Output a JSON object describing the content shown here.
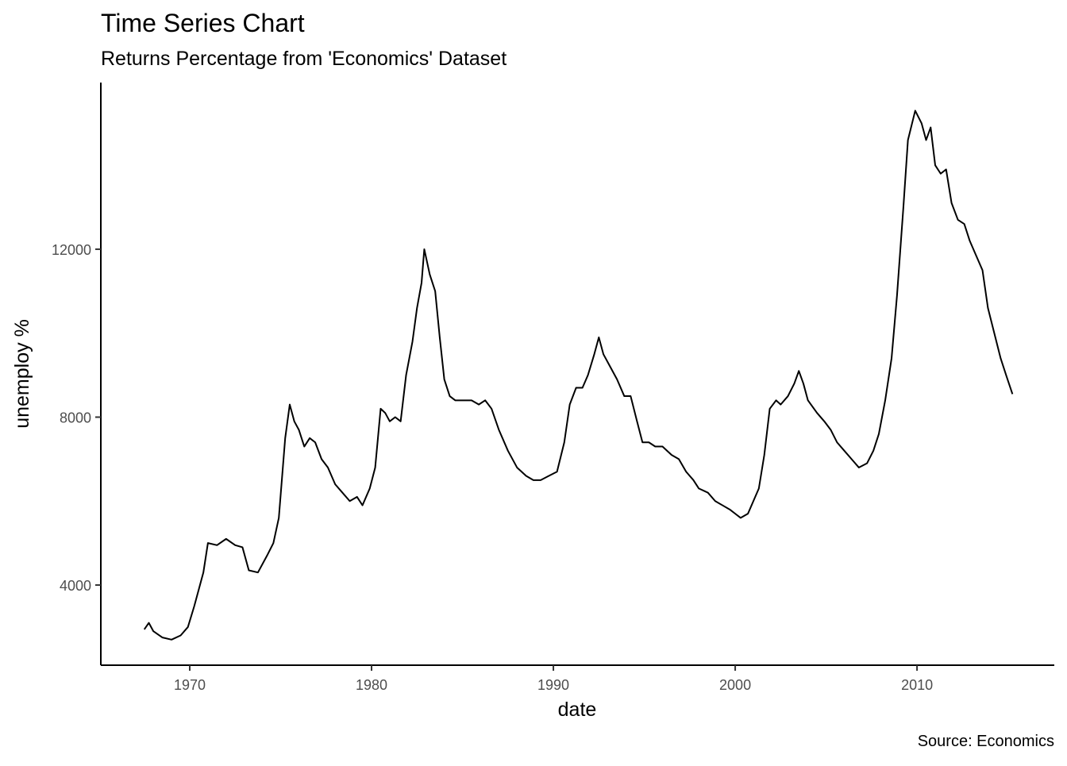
{
  "chart_data": {
    "type": "line",
    "title": "Time Series Chart",
    "subtitle": "Returns Percentage from 'Economics' Dataset",
    "x_label": "date",
    "y_label": "unemploy %",
    "caption": "Source: Economics",
    "color": "#000000",
    "grid": false,
    "x": [
      1967.5,
      1967.75,
      1968.0,
      1968.5,
      1969.0,
      1969.5,
      1969.9,
      1970.25,
      1970.5,
      1970.75,
      1971.0,
      1971.5,
      1972.0,
      1972.5,
      1972.9,
      1973.25,
      1973.75,
      1974.25,
      1974.6,
      1974.9,
      1975.25,
      1975.5,
      1975.75,
      1976.0,
      1976.3,
      1976.6,
      1976.9,
      1977.25,
      1977.6,
      1978.0,
      1978.4,
      1978.8,
      1979.2,
      1979.5,
      1979.9,
      1980.2,
      1980.5,
      1980.75,
      1981.0,
      1981.3,
      1981.6,
      1981.9,
      1982.25,
      1982.5,
      1982.75,
      1982.9,
      1983.2,
      1983.5,
      1983.75,
      1984.0,
      1984.3,
      1984.6,
      1985.0,
      1985.5,
      1985.9,
      1986.25,
      1986.6,
      1987.0,
      1987.5,
      1988.0,
      1988.5,
      1988.9,
      1989.3,
      1989.75,
      1990.2,
      1990.6,
      1990.9,
      1991.25,
      1991.6,
      1991.9,
      1992.25,
      1992.5,
      1992.75,
      1993.0,
      1993.5,
      1993.9,
      1994.25,
      1994.6,
      1994.9,
      1995.25,
      1995.6,
      1996.0,
      1996.5,
      1996.9,
      1997.3,
      1997.7,
      1998.0,
      1998.5,
      1998.9,
      1999.3,
      1999.7,
      2000.0,
      2000.3,
      2000.7,
      2001.0,
      2001.3,
      2001.6,
      2001.9,
      2002.25,
      2002.5,
      2002.9,
      2003.25,
      2003.5,
      2003.75,
      2004.0,
      2004.5,
      2004.9,
      2005.25,
      2005.6,
      2006.0,
      2006.4,
      2006.8,
      2007.25,
      2007.6,
      2007.9,
      2008.25,
      2008.6,
      2008.9,
      2009.25,
      2009.5,
      2009.9,
      2010.25,
      2010.5,
      2010.75,
      2011.0,
      2011.3,
      2011.6,
      2011.9,
      2012.25,
      2012.6,
      2012.9,
      2013.2,
      2013.6,
      2013.9,
      2014.25,
      2014.6,
      2014.9,
      2015.25
    ],
    "values": [
      2944,
      3100,
      2900,
      2750,
      2700,
      2800,
      3000,
      3500,
      3900,
      4300,
      5000,
      4950,
      5100,
      4950,
      4900,
      4350,
      4300,
      4700,
      5000,
      5600,
      7500,
      8300,
      7900,
      7700,
      7300,
      7500,
      7400,
      7000,
      6800,
      6400,
      6200,
      6000,
      6100,
      5900,
      6300,
      6800,
      8200,
      8100,
      7900,
      8000,
      7900,
      9000,
      9800,
      10600,
      11200,
      12000,
      11400,
      11000,
      9900,
      8900,
      8500,
      8400,
      8400,
      8400,
      8300,
      8400,
      8200,
      7700,
      7200,
      6800,
      6600,
      6500,
      6500,
      6600,
      6700,
      7400,
      8300,
      8700,
      8700,
      9000,
      9500,
      9900,
      9500,
      9300,
      8900,
      8500,
      8500,
      7900,
      7400,
      7400,
      7300,
      7300,
      7100,
      7000,
      6700,
      6500,
      6300,
      6200,
      6000,
      5900,
      5800,
      5700,
      5600,
      5700,
      6000,
      6300,
      7100,
      8200,
      8400,
      8300,
      8500,
      8800,
      9100,
      8800,
      8400,
      8100,
      7900,
      7700,
      7400,
      7200,
      7000,
      6800,
      6900,
      7200,
      7600,
      8400,
      9400,
      10900,
      13000,
      14600,
      15300,
      15000,
      14600,
      14900,
      14000,
      13800,
      13900,
      13100,
      12700,
      12600,
      12200,
      11900,
      11500,
      10600,
      10000,
      9400,
      9000,
      8549
    ],
    "xlim": [
      1965.11,
      2017.55
    ],
    "xticks": [
      1970,
      1980,
      1990,
      2000,
      2010
    ],
    "ylim": [
      2091,
      15970
    ],
    "yticks": [
      4000,
      8000,
      12000
    ]
  }
}
